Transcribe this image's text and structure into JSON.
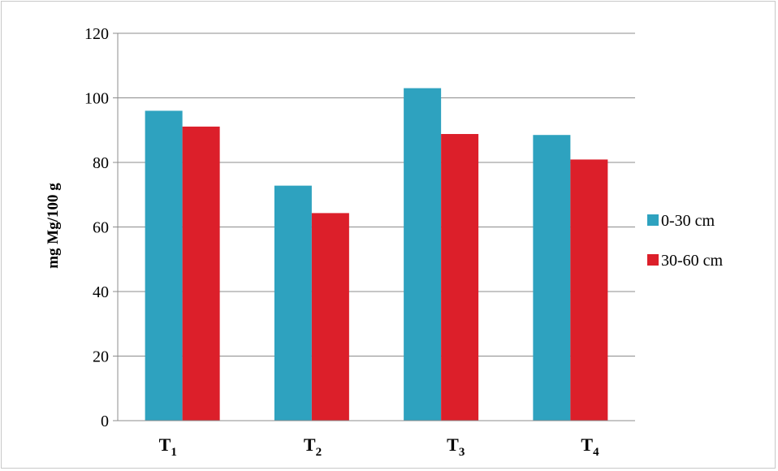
{
  "chart_data": {
    "type": "bar",
    "categories": [
      {
        "base": "T",
        "sub": "1"
      },
      {
        "base": "T",
        "sub": "2"
      },
      {
        "base": "T",
        "sub": "3"
      },
      {
        "base": "T",
        "sub": "4"
      }
    ],
    "series": [
      {
        "name": "0-30 cm",
        "color": "#2ea2bf",
        "values": [
          96,
          72.8,
          103,
          88.5
        ]
      },
      {
        "name": "30-60 cm",
        "color": "#dc1f2a",
        "values": [
          91.1,
          64.3,
          88.8,
          80.9
        ]
      }
    ],
    "title": "",
    "xlabel": "",
    "ylabel": "mg Mg/100 g",
    "ylim": [
      0,
      120
    ],
    "yticks": [
      0,
      20,
      40,
      60,
      80,
      100,
      120
    ],
    "grid": true,
    "legend_position": "right"
  }
}
